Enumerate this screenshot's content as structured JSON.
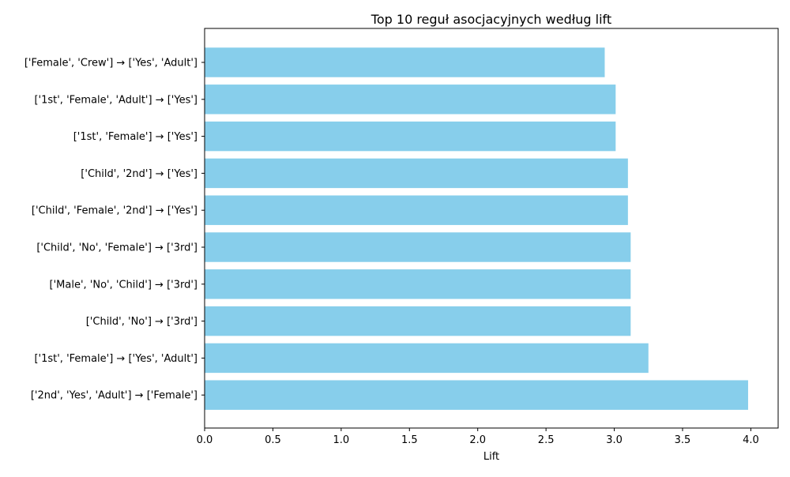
{
  "chart_data": {
    "type": "bar",
    "orientation": "horizontal",
    "title": "Top 10 reguł asocjacyjnych według lift",
    "xlabel": "Lift",
    "ylabel": "",
    "xlim": [
      0.0,
      4.2
    ],
    "xticks": [
      "0.0",
      "0.5",
      "1.0",
      "1.5",
      "2.0",
      "2.5",
      "3.0",
      "3.5",
      "4.0"
    ],
    "grid": false,
    "legend": false,
    "bar_color": "#87CEEB",
    "categories": [
      "['Female', 'Crew'] → ['Yes', 'Adult']",
      "['1st', 'Female', 'Adult'] → ['Yes']",
      "['1st', 'Female'] → ['Yes']",
      "['Child', '2nd'] → ['Yes']",
      "['Child', 'Female', '2nd'] → ['Yes']",
      "['Child', 'No', 'Female'] → ['3rd']",
      "['Male', 'No', 'Child'] → ['3rd']",
      "['Child', 'No'] → ['3rd']",
      "['1st', 'Female'] → ['Yes', 'Adult']",
      "['2nd', 'Yes', 'Adult'] → ['Female']"
    ],
    "values": [
      2.93,
      3.01,
      3.01,
      3.1,
      3.1,
      3.12,
      3.12,
      3.12,
      3.25,
      3.98
    ]
  }
}
